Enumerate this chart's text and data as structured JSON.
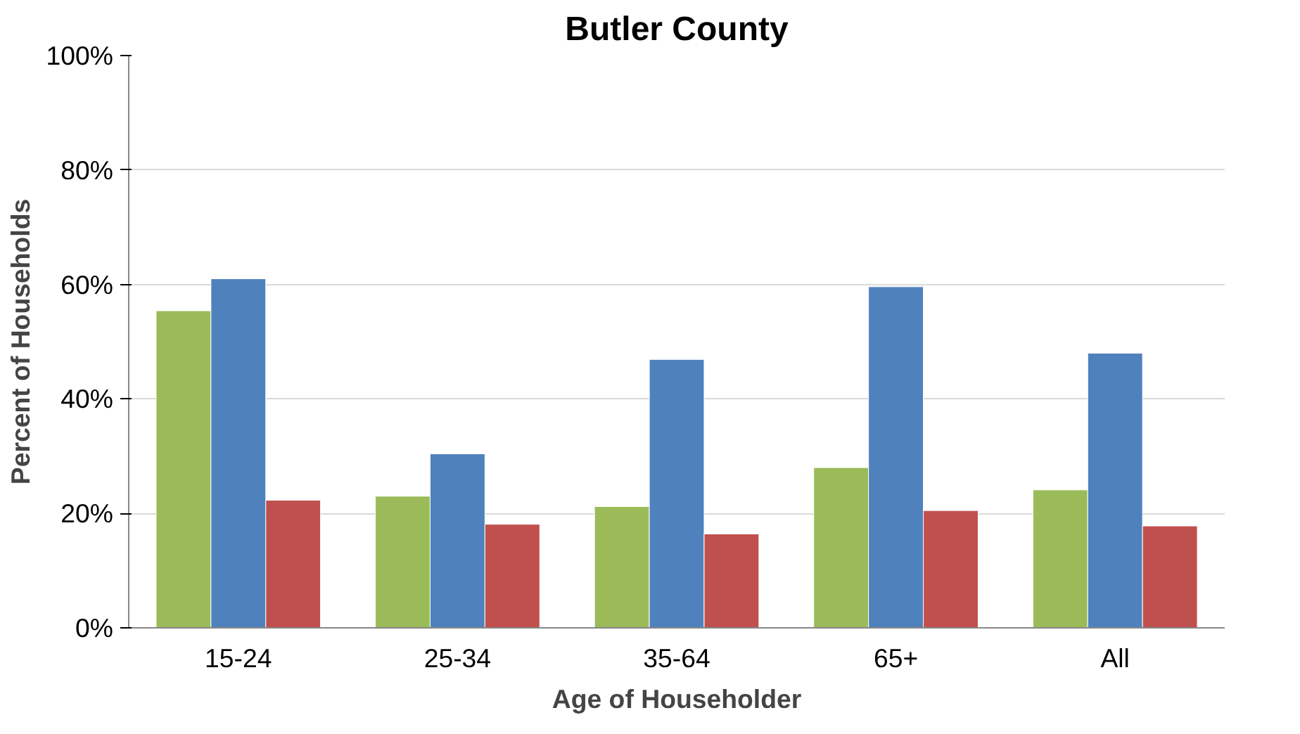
{
  "chart_data": {
    "type": "bar",
    "title": "Butler County",
    "xlabel": "Age of Householder",
    "ylabel": "Percent of Households",
    "categories": [
      "15-24",
      "25-34",
      "35-64",
      "65+",
      "All"
    ],
    "series": [
      {
        "color": "#9bbb59",
        "values": [
          55.4,
          23.0,
          21.2,
          28.0,
          24.1
        ]
      },
      {
        "color": "#4f81bd",
        "values": [
          61.0,
          30.4,
          46.9,
          59.6,
          48.0
        ]
      },
      {
        "color": "#c0504d",
        "values": [
          22.3,
          18.1,
          16.4,
          20.5,
          17.8
        ]
      }
    ],
    "ylim": [
      0,
      100
    ],
    "yticks": [
      {
        "value": 0,
        "label": "0%"
      },
      {
        "value": 20,
        "label": "20%"
      },
      {
        "value": 40,
        "label": "40%"
      },
      {
        "value": 60,
        "label": "60%"
      },
      {
        "value": 80,
        "label": "80%"
      },
      {
        "value": 100,
        "label": "100%"
      }
    ],
    "grid": "y"
  }
}
